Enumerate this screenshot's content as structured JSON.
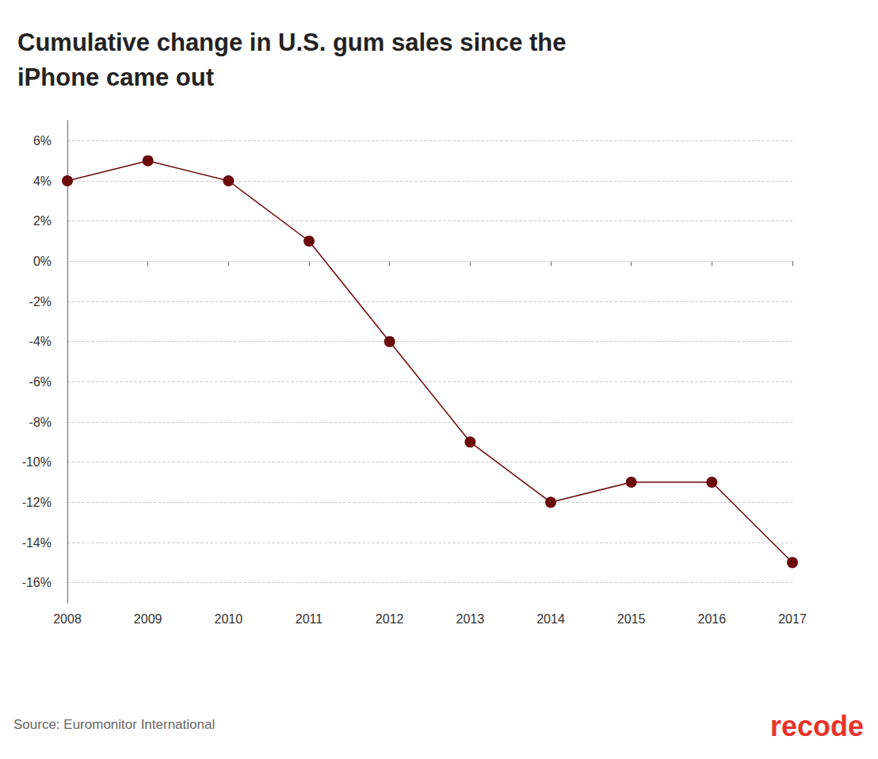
{
  "chart_data": {
    "type": "line",
    "title": "Cumulative change in U.S. gum sales since the iPhone came out",
    "source": "Source: Euromonitor International",
    "publisher": "recode",
    "categories": [
      "2008",
      "2009",
      "2010",
      "2011",
      "2012",
      "2013",
      "2014",
      "2015",
      "2016",
      "2017"
    ],
    "values": [
      4,
      5,
      4,
      1,
      -4,
      -9,
      -12,
      -11,
      -11,
      -15
    ],
    "color": "#6b0a0a",
    "marker": "circle",
    "ylim": [
      -17,
      7
    ],
    "yticks": [
      {
        "value": -16,
        "label": "-16%"
      },
      {
        "value": -14,
        "label": "-14%"
      },
      {
        "value": -12,
        "label": "-12%"
      },
      {
        "value": -10,
        "label": "-10%"
      },
      {
        "value": -8,
        "label": "-8%"
      },
      {
        "value": -6,
        "label": "-6%"
      },
      {
        "value": -4,
        "label": "-4%"
      },
      {
        "value": -2,
        "label": "-2%"
      },
      {
        "value": 0,
        "label": "0%"
      },
      {
        "value": 2,
        "label": "2%"
      },
      {
        "value": 4,
        "label": "4%"
      },
      {
        "value": 6,
        "label": "6%"
      }
    ],
    "grid": true
  }
}
